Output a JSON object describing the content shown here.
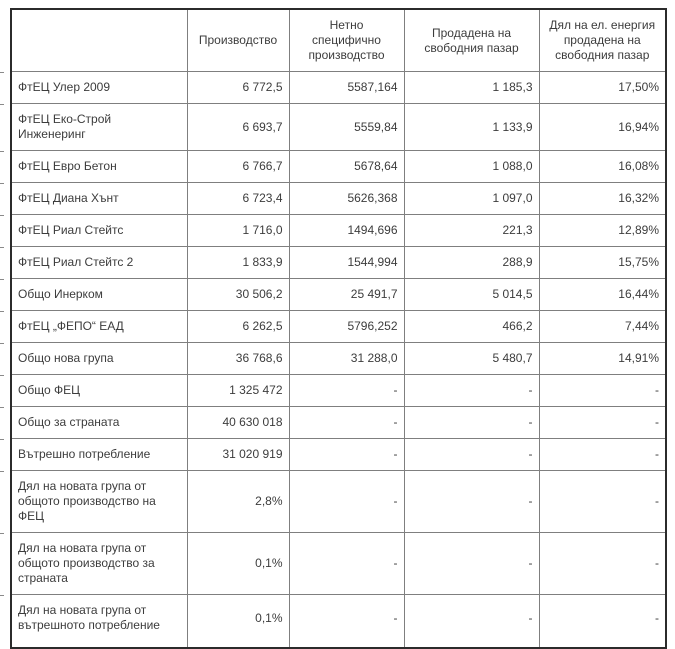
{
  "table": {
    "columns": [
      "",
      "Производство",
      "Нетно специфично производство",
      "Продадена на свободния пазар",
      "Дял на ел. енергия продадена на свободния пазар"
    ],
    "rows": [
      {
        "label": "ФтЕЦ Улер 2009",
        "values": [
          "6 772,5",
          "5587,164",
          "1 185,3",
          "17,50%"
        ]
      },
      {
        "label": "ФтЕЦ Еко-Строй Инженеринг",
        "values": [
          "6 693,7",
          "5559,84",
          "1 133,9",
          "16,94%"
        ]
      },
      {
        "label": "ФтЕЦ Евро Бетон",
        "values": [
          "6 766,7",
          "5678,64",
          "1 088,0",
          "16,08%"
        ]
      },
      {
        "label": "ФтЕЦ Диана Хънт",
        "values": [
          "6 723,4",
          "5626,368",
          "1 097,0",
          "16,32%"
        ]
      },
      {
        "label": "ФтЕЦ Риал Стейтс",
        "values": [
          "1 716,0",
          "1494,696",
          "221,3",
          "12,89%"
        ]
      },
      {
        "label": "ФтЕЦ Риал Стейтс 2",
        "values": [
          "1 833,9",
          "1544,994",
          "288,9",
          "15,75%"
        ]
      },
      {
        "label": "Общо Инерком",
        "values": [
          "30 506,2",
          "25 491,7",
          "5 014,5",
          "16,44%"
        ]
      },
      {
        "label": "ФтЕЦ „ФЕПО“ ЕАД",
        "values": [
          "6 262,5",
          "5796,252",
          "466,2",
          "7,44%"
        ]
      },
      {
        "label": "Общо нова група",
        "values": [
          "36 768,6",
          "31 288,0",
          "5 480,7",
          "14,91%"
        ]
      },
      {
        "label": "Общо ФЕЦ",
        "values": [
          "1 325 472",
          "-",
          "-",
          "-"
        ]
      },
      {
        "label": "Общо за страната",
        "values": [
          "40 630 018",
          "-",
          "-",
          "-"
        ]
      },
      {
        "label": "Вътрешно потребление",
        "values": [
          "31 020 919",
          "-",
          "-",
          "-"
        ]
      },
      {
        "label": "Дял на новата група от общото производство на ФЕЦ",
        "values": [
          "2,8%",
          "-",
          "-",
          "-"
        ]
      },
      {
        "label": "Дял на новата група от общото производство за страната",
        "values": [
          "0,1%",
          "-",
          "-",
          "-"
        ]
      },
      {
        "label": "Дял на новата група от вътрешното потребление",
        "values": [
          "0,1%",
          "-",
          "-",
          "-"
        ]
      }
    ],
    "colors": {
      "border_outer": "#2b2b2b",
      "border_inner": "#7f7f7f",
      "text": "#3c3c3c",
      "background": "#ffffff"
    }
  }
}
